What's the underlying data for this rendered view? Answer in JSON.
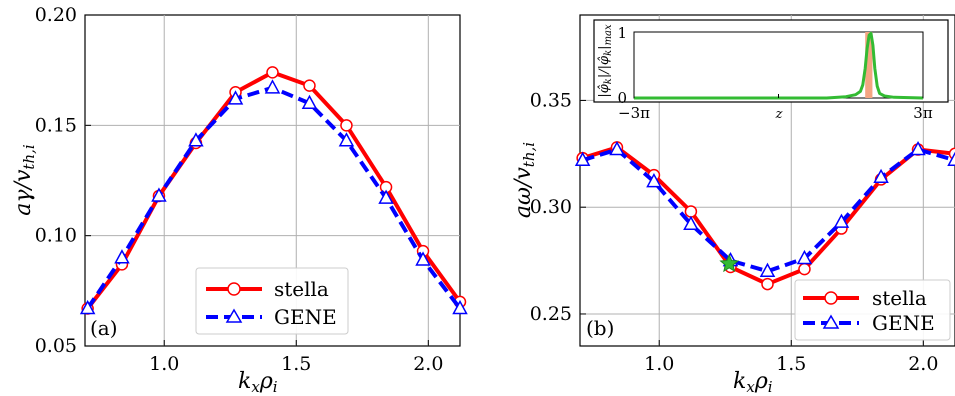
{
  "chart_data": [
    {
      "type": "line",
      "panel_label": "(a)",
      "xlabel": "k_xρ_i",
      "ylabel": "aγ/v_th,i",
      "xlim": [
        0.7,
        2.12
      ],
      "ylim": [
        0.05,
        0.2
      ],
      "xticks": [
        1.0,
        1.5,
        2.0
      ],
      "xtick_labels": [
        "1.0",
        "1.5",
        "2.0"
      ],
      "yticks": [
        0.05,
        0.1,
        0.15,
        0.2
      ],
      "ytick_labels": [
        "0.05",
        "0.10",
        "0.15",
        "0.20"
      ],
      "grid": true,
      "legend_position": "lower-right",
      "series": [
        {
          "name": "stella",
          "color": "#ff0000",
          "style": "solid",
          "marker": "circle",
          "x": [
            0.71,
            0.84,
            0.98,
            1.12,
            1.27,
            1.41,
            1.55,
            1.69,
            1.84,
            1.98,
            2.12
          ],
          "y": [
            0.067,
            0.087,
            0.118,
            0.142,
            0.165,
            0.174,
            0.168,
            0.15,
            0.122,
            0.093,
            0.07
          ]
        },
        {
          "name": "GENE",
          "color": "#0000ff",
          "style": "dashed",
          "marker": "triangle",
          "x": [
            0.71,
            0.84,
            0.98,
            1.12,
            1.27,
            1.41,
            1.55,
            1.69,
            1.84,
            1.98,
            2.12
          ],
          "y": [
            0.067,
            0.09,
            0.118,
            0.143,
            0.162,
            0.167,
            0.16,
            0.143,
            0.117,
            0.089,
            0.067
          ]
        }
      ]
    },
    {
      "type": "line",
      "panel_label": "(b)",
      "xlabel": "k_xρ_i",
      "ylabel": "aω/v_th,i",
      "xlim": [
        0.7,
        2.12
      ],
      "ylim": [
        0.235,
        0.39
      ],
      "xticks": [
        1.0,
        1.5,
        2.0
      ],
      "xtick_labels": [
        "1.0",
        "1.5",
        "2.0"
      ],
      "yticks": [
        0.25,
        0.3,
        0.35
      ],
      "ytick_labels": [
        "0.25",
        "0.30",
        "0.35"
      ],
      "grid": true,
      "legend_position": "lower-right",
      "highlight_point": {
        "x": 1.265,
        "y": 0.2735,
        "marker": "star",
        "color": "#33bb33"
      },
      "series": [
        {
          "name": "stella",
          "color": "#ff0000",
          "style": "solid",
          "marker": "circle",
          "x": [
            0.71,
            0.84,
            0.98,
            1.12,
            1.27,
            1.41,
            1.55,
            1.69,
            1.84,
            1.98,
            2.12
          ],
          "y": [
            0.323,
            0.328,
            0.315,
            0.298,
            0.272,
            0.264,
            0.271,
            0.29,
            0.313,
            0.327,
            0.325
          ]
        },
        {
          "name": "GENE",
          "color": "#0000ff",
          "style": "dashed",
          "marker": "triangle",
          "x": [
            0.71,
            0.84,
            0.98,
            1.12,
            1.27,
            1.41,
            1.55,
            1.69,
            1.84,
            1.98,
            2.12
          ],
          "y": [
            0.322,
            0.327,
            0.312,
            0.292,
            0.275,
            0.27,
            0.276,
            0.293,
            0.314,
            0.327,
            0.322
          ]
        }
      ],
      "inset": {
        "type": "line",
        "xlabel": "z",
        "ylabel": "|φ̂_k|/|φ̂_k|_max",
        "xlim": [
          -3,
          3
        ],
        "ylim": [
          0,
          1
        ],
        "xtick_labels": [
          "−3π",
          "3π"
        ],
        "ytick_labels": [
          "0",
          "1"
        ],
        "line_color": "#33bb33",
        "band_color": "#f4a582",
        "band_x": [
          1.8,
          1.95
        ],
        "curve": {
          "x": [
            -3.0,
            -2.0,
            -1.0,
            0.0,
            1.0,
            1.4,
            1.6,
            1.7,
            1.75,
            1.8,
            1.84,
            1.88,
            1.92,
            1.96,
            2.0,
            2.05,
            2.1,
            2.2,
            2.4,
            3.0
          ],
          "y": [
            0.0,
            0.0,
            0.0,
            0.0,
            0.0,
            0.02,
            0.05,
            0.1,
            0.2,
            0.45,
            0.75,
            0.95,
            0.98,
            0.8,
            0.45,
            0.18,
            0.07,
            0.03,
            0.01,
            0.0
          ]
        }
      }
    }
  ]
}
